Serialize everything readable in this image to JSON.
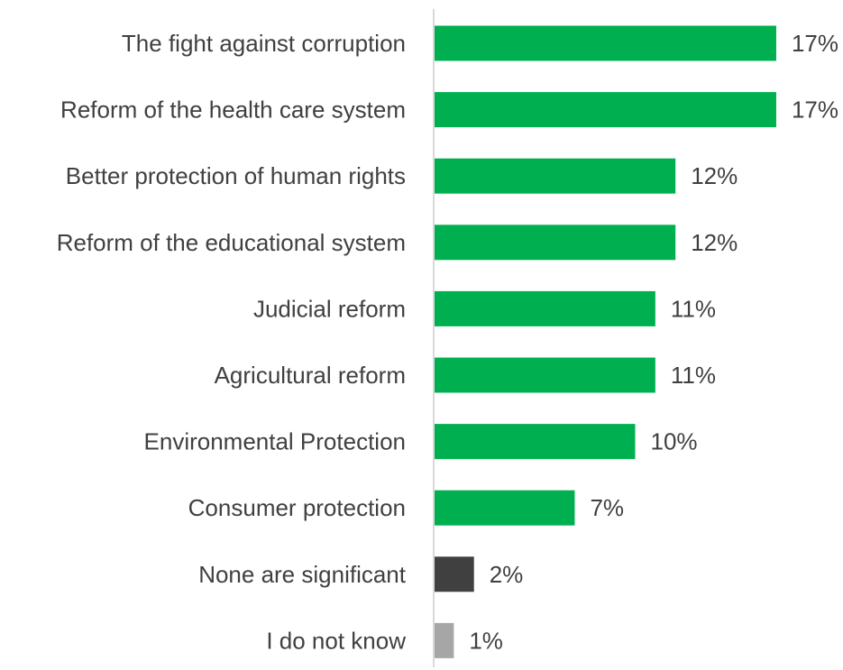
{
  "chart_data": {
    "type": "bar",
    "orientation": "horizontal",
    "categories": [
      "The fight against corruption",
      "Reform of the health care system",
      "Better protection of human rights",
      "Reform of the educational system",
      "Judicial reform",
      "Agricultural reform",
      "Environmental Protection",
      "Consumer protection",
      "None are significant",
      "I do not know"
    ],
    "values": [
      17,
      17,
      12,
      12,
      11,
      11,
      10,
      7,
      2,
      1
    ],
    "value_labels": [
      "17%",
      "17%",
      "12%",
      "12%",
      "11%",
      "11%",
      "10%",
      "7%",
      "2%",
      "1%"
    ],
    "bar_colors": [
      "#00B050",
      "#00B050",
      "#00B050",
      "#00B050",
      "#00B050",
      "#00B050",
      "#00B050",
      "#00B050",
      "#404040",
      "#A6A6A6"
    ],
    "title": "",
    "xlabel": "",
    "ylabel": "",
    "xlim": [
      0,
      20
    ],
    "grid": false,
    "legend": "none"
  }
}
